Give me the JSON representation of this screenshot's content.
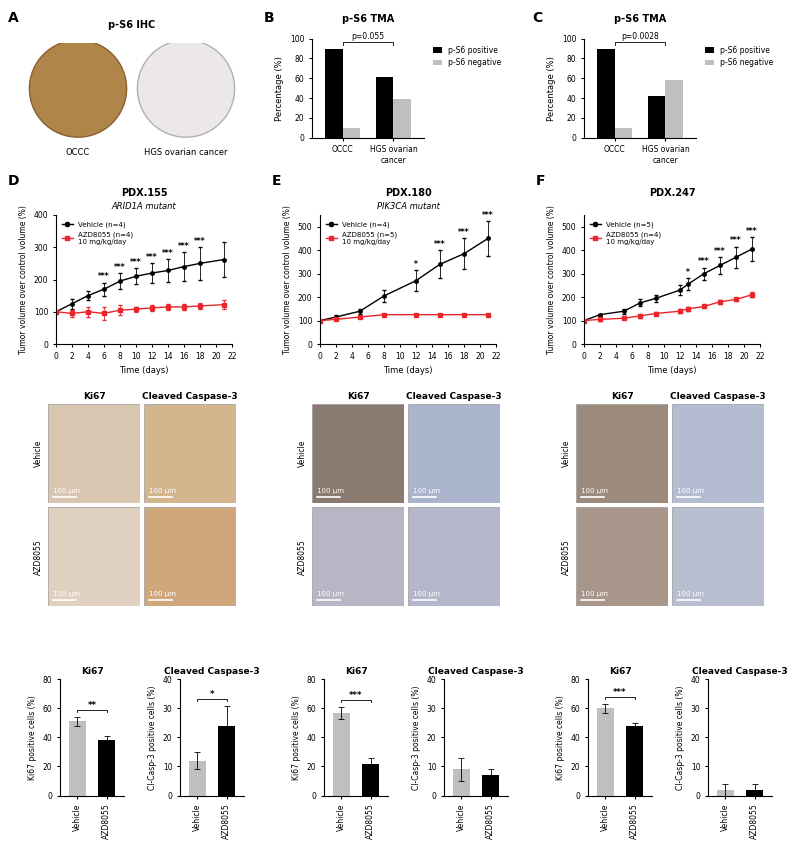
{
  "chart_data": [
    {
      "type": "image",
      "panel": "A",
      "title": "p-S6 IHC",
      "labels": [
        "OCCC",
        "HGS ovarian cancer"
      ]
    },
    {
      "type": "bar",
      "panel": "B",
      "title": "p-S6 TMA",
      "ylabel": "Percentage (%)",
      "categories": [
        "OCCC",
        "HGS ovarian cancer"
      ],
      "series": [
        {
          "name": "p-S6 positive",
          "color": "#000000",
          "values": [
            90,
            61
          ]
        },
        {
          "name": "p-S6 negative",
          "color": "#bfbfbf",
          "values": [
            10,
            39
          ]
        }
      ],
      "ylim": [
        0,
        100
      ],
      "yticks": [
        0,
        20,
        40,
        60,
        80,
        100
      ],
      "annotation": "p=0.055",
      "legend": "right"
    },
    {
      "type": "bar",
      "panel": "C",
      "title": "p-S6 TMA",
      "ylabel": "Percentage (%)",
      "categories": [
        "OCCC",
        "HGS ovarian cancer"
      ],
      "series": [
        {
          "name": "p-S6 positive",
          "color": "#000000",
          "values": [
            90,
            42
          ]
        },
        {
          "name": "p-S6 negative",
          "color": "#bfbfbf",
          "values": [
            10,
            58
          ]
        }
      ],
      "ylim": [
        0,
        100
      ],
      "yticks": [
        0,
        20,
        40,
        60,
        80,
        100
      ],
      "annotation": "p=0.0028",
      "legend": "right"
    },
    {
      "type": "line",
      "panel": "D",
      "title": "PDX.155",
      "subtitle": "ARID1A mutant",
      "xlabel": "Time (days)",
      "ylabel": "Tumor volume over control volume (%)",
      "x": [
        0,
        2,
        4,
        6,
        8,
        10,
        12,
        14,
        16,
        18,
        21
      ],
      "series": [
        {
          "name": "Vehicle (n=4)",
          "color": "#000000",
          "marker": "circle",
          "values": [
            100,
            125,
            150,
            170,
            195,
            210,
            220,
            228,
            240,
            250,
            262
          ],
          "errors": [
            0,
            15,
            15,
            20,
            25,
            25,
            30,
            35,
            45,
            50,
            55
          ]
        },
        {
          "name": "AZD8055 (n=4)\n10 mg/kg/day",
          "color": "#e8262b",
          "marker": "square",
          "values": [
            100,
            95,
            100,
            95,
            105,
            108,
            112,
            115,
            115,
            118,
            122
          ],
          "errors": [
            0,
            10,
            15,
            20,
            15,
            8,
            10,
            10,
            10,
            10,
            15
          ]
        }
      ],
      "xlim": [
        0,
        22
      ],
      "xticks": [
        0,
        2,
        4,
        6,
        8,
        10,
        12,
        14,
        16,
        18,
        20,
        22
      ],
      "ylim": [
        0,
        400
      ],
      "yticks": [
        0,
        100,
        200,
        300,
        400
      ],
      "significance": [
        {
          "x": 6,
          "label": "***"
        },
        {
          "x": 8,
          "label": "***"
        },
        {
          "x": 10,
          "label": "***"
        },
        {
          "x": 12,
          "label": "***"
        },
        {
          "x": 14,
          "label": "***"
        },
        {
          "x": 16,
          "label": "***"
        },
        {
          "x": 18,
          "label": "***"
        }
      ],
      "legend": "upper left"
    },
    {
      "type": "image",
      "columns": [
        "Ki67",
        "Cleaved Caspase-3"
      ],
      "rows": [
        "Vehicle",
        "AZD8055"
      ],
      "scale_bar": "100 µm"
    },
    {
      "type": "bar",
      "title": "Ki67",
      "ylabel": "Ki67 positive cells (%)",
      "categories": [
        "Vehicle",
        "AZD8055"
      ],
      "values": [
        51,
        38
      ],
      "errors": [
        3,
        3
      ],
      "colors": [
        "#bfbfbf",
        "#000000"
      ],
      "ylim": [
        0,
        80
      ],
      "yticks": [
        0,
        20,
        40,
        60,
        80
      ],
      "significance": "**"
    },
    {
      "type": "bar",
      "title": "Cleaved Caspase-3",
      "ylabel": "Cl-Casp-3 positive cells (%)",
      "categories": [
        "Vehicle",
        "AZD8055"
      ],
      "values": [
        12,
        24
      ],
      "errors": [
        3,
        7
      ],
      "colors": [
        "#bfbfbf",
        "#000000"
      ],
      "ylim": [
        0,
        40
      ],
      "yticks": [
        0,
        10,
        20,
        30,
        40
      ],
      "significance": "*"
    },
    {
      "type": "line",
      "panel": "E",
      "title": "PDX.180",
      "subtitle": "PIK3CA mutant",
      "xlabel": "Time (days)",
      "ylabel": "Tumor volume over control volume (%)",
      "x": [
        0,
        2,
        5,
        8,
        12,
        15,
        18,
        21
      ],
      "series": [
        {
          "name": "Vehicle (n=4)",
          "color": "#000000",
          "marker": "circle",
          "values": [
            100,
            115,
            140,
            205,
            270,
            340,
            385,
            450
          ],
          "errors": [
            0,
            8,
            10,
            25,
            45,
            60,
            65,
            75
          ]
        },
        {
          "name": "AZD8055 (n=5)\n10 mg/kg/day",
          "color": "#e8262b",
          "marker": "square",
          "values": [
            100,
            105,
            115,
            125,
            125,
            125,
            125,
            125
          ],
          "errors": [
            0,
            3,
            3,
            3,
            3,
            3,
            3,
            3
          ]
        }
      ],
      "xlim": [
        0,
        22
      ],
      "xticks": [
        0,
        2,
        4,
        6,
        8,
        10,
        12,
        14,
        16,
        18,
        20,
        22
      ],
      "ylim": [
        0,
        550
      ],
      "yticks": [
        0,
        100,
        200,
        300,
        400,
        500
      ],
      "significance": [
        {
          "x": 12,
          "label": "*"
        },
        {
          "x": 15,
          "label": "***"
        },
        {
          "x": 18,
          "label": "***"
        },
        {
          "x": 21,
          "label": "***"
        }
      ],
      "legend": "upper left"
    },
    {
      "type": "image",
      "columns": [
        "Ki67",
        "Cleaved Caspase-3"
      ],
      "rows": [
        "Vehicle",
        "AZD8055"
      ],
      "scale_bar": "100 µm"
    },
    {
      "type": "bar",
      "title": "Ki67",
      "ylabel": "Ki67 positive cells (%)",
      "categories": [
        "Vehicle",
        "AZD8055"
      ],
      "values": [
        57,
        22
      ],
      "errors": [
        4,
        4
      ],
      "colors": [
        "#bfbfbf",
        "#000000"
      ],
      "ylim": [
        0,
        80
      ],
      "yticks": [
        0,
        20,
        40,
        60,
        80
      ],
      "significance": "***"
    },
    {
      "type": "bar",
      "title": "Cleaved Caspase-3",
      "ylabel": "Cl-Casp-3 positive cells (%)",
      "categories": [
        "Vehicle",
        "AZD8055"
      ],
      "values": [
        9,
        7
      ],
      "errors": [
        4,
        2
      ],
      "colors": [
        "#bfbfbf",
        "#000000"
      ],
      "ylim": [
        0,
        40
      ],
      "yticks": [
        0,
        10,
        20,
        30,
        40
      ]
    },
    {
      "type": "line",
      "panel": "F",
      "title": "PDX.247",
      "xlabel": "Time (days)",
      "ylabel": "Tumor volume over control volume (%)",
      "x": [
        0,
        2,
        5,
        7,
        9,
        12,
        13,
        15,
        17,
        19,
        21
      ],
      "series": [
        {
          "name": "Vehicle (n=5)",
          "color": "#000000",
          "marker": "circle",
          "values": [
            100,
            125,
            140,
            175,
            195,
            230,
            255,
            300,
            335,
            370,
            405
          ],
          "errors": [
            0,
            5,
            10,
            15,
            15,
            20,
            25,
            25,
            35,
            45,
            50
          ]
        },
        {
          "name": "AZD8055 (n=4)\n10 mg/kg/day",
          "color": "#e8262b",
          "marker": "square",
          "values": [
            100,
            105,
            110,
            120,
            130,
            140,
            150,
            160,
            180,
            190,
            210
          ],
          "errors": [
            0,
            5,
            5,
            8,
            8,
            8,
            8,
            8,
            8,
            8,
            10
          ]
        }
      ],
      "xlim": [
        0,
        22
      ],
      "xticks": [
        0,
        2,
        4,
        6,
        8,
        10,
        12,
        14,
        16,
        18,
        20,
        22
      ],
      "ylim": [
        0,
        550
      ],
      "yticks": [
        0,
        100,
        200,
        300,
        400,
        500
      ],
      "significance": [
        {
          "x": 13,
          "label": "*"
        },
        {
          "x": 15,
          "label": "***"
        },
        {
          "x": 17,
          "label": "***"
        },
        {
          "x": 19,
          "label": "***"
        },
        {
          "x": 21,
          "label": "***"
        }
      ],
      "legend": "upper left"
    },
    {
      "type": "image",
      "columns": [
        "Ki67",
        "Cleaved Caspase-3"
      ],
      "rows": [
        "Vehicle",
        "AZD8055"
      ],
      "scale_bar": "100 µm"
    },
    {
      "type": "bar",
      "title": "Ki67",
      "ylabel": "Ki67 positive cells (%)",
      "categories": [
        "Vehicle",
        "AZD8055"
      ],
      "values": [
        60,
        48
      ],
      "errors": [
        3,
        2
      ],
      "colors": [
        "#bfbfbf",
        "#000000"
      ],
      "ylim": [
        0,
        80
      ],
      "yticks": [
        0,
        20,
        40,
        60,
        80
      ],
      "significance": "***"
    },
    {
      "type": "bar",
      "title": "Cleaved Caspase-3",
      "ylabel": "Cl-Casp-3 positive cells (%)",
      "categories": [
        "Vehicle",
        "AZD8055"
      ],
      "values": [
        2,
        2
      ],
      "errors": [
        2,
        2
      ],
      "colors": [
        "#bfbfbf",
        "#000000"
      ],
      "ylim": [
        0,
        40
      ],
      "yticks": [
        0,
        10,
        20,
        30,
        40
      ]
    }
  ]
}
